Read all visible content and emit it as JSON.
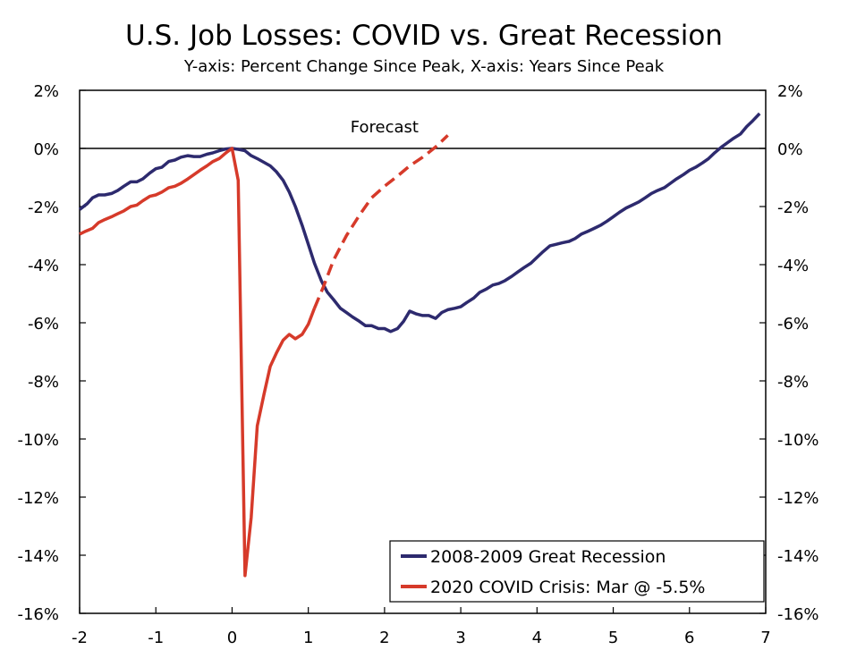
{
  "chart_data": {
    "type": "line",
    "title": "U.S. Job Losses: COVID vs. Great Recession",
    "subtitle": "Y-axis: Percent Change Since Peak, X-axis: Years Since Peak",
    "xlabel": "Years Since Peak",
    "ylabel": "Percent Change Since Peak",
    "xlim": [
      -2,
      7
    ],
    "ylim": [
      -16,
      2
    ],
    "x_ticks": [
      -2,
      -1,
      0,
      1,
      2,
      3,
      4,
      5,
      6,
      7
    ],
    "x_tick_labels": [
      "-2",
      "-1",
      "0",
      "1",
      "2",
      "3",
      "4",
      "5",
      "6",
      "7"
    ],
    "y_ticks": [
      2,
      0,
      -2,
      -4,
      -6,
      -8,
      -10,
      -12,
      -14,
      -16
    ],
    "y_tick_labels": [
      "2%",
      "0%",
      "-2%",
      "-4%",
      "-6%",
      "-8%",
      "-10%",
      "-12%",
      "-14%",
      "-16%"
    ],
    "annotation": "Forecast",
    "legend_position": "bottom-right",
    "series": [
      {
        "name": "2008-2009 Great Recession",
        "color": "#2d2a6e",
        "style": "solid",
        "points": [
          [
            -2.0,
            -2.1
          ],
          [
            -1.9,
            -1.9
          ],
          [
            -1.83,
            -1.7
          ],
          [
            -1.75,
            -1.6
          ],
          [
            -1.67,
            -1.6
          ],
          [
            -1.58,
            -1.55
          ],
          [
            -1.5,
            -1.45
          ],
          [
            -1.42,
            -1.3
          ],
          [
            -1.33,
            -1.15
          ],
          [
            -1.25,
            -1.15
          ],
          [
            -1.17,
            -1.05
          ],
          [
            -1.08,
            -0.85
          ],
          [
            -1.0,
            -0.7
          ],
          [
            -0.92,
            -0.65
          ],
          [
            -0.83,
            -0.45
          ],
          [
            -0.75,
            -0.4
          ],
          [
            -0.67,
            -0.3
          ],
          [
            -0.58,
            -0.25
          ],
          [
            -0.5,
            -0.28
          ],
          [
            -0.42,
            -0.28
          ],
          [
            -0.33,
            -0.2
          ],
          [
            -0.25,
            -0.15
          ],
          [
            -0.17,
            -0.08
          ],
          [
            -0.08,
            -0.02
          ],
          [
            0.0,
            0.0
          ],
          [
            0.08,
            -0.03
          ],
          [
            0.17,
            -0.08
          ],
          [
            0.25,
            -0.25
          ],
          [
            0.33,
            -0.35
          ],
          [
            0.42,
            -0.48
          ],
          [
            0.5,
            -0.6
          ],
          [
            0.58,
            -0.8
          ],
          [
            0.67,
            -1.1
          ],
          [
            0.75,
            -1.5
          ],
          [
            0.83,
            -2.0
          ],
          [
            0.92,
            -2.65
          ],
          [
            1.0,
            -3.3
          ],
          [
            1.08,
            -3.95
          ],
          [
            1.17,
            -4.55
          ],
          [
            1.25,
            -4.95
          ],
          [
            1.33,
            -5.2
          ],
          [
            1.42,
            -5.5
          ],
          [
            1.5,
            -5.65
          ],
          [
            1.58,
            -5.8
          ],
          [
            1.67,
            -5.95
          ],
          [
            1.75,
            -6.1
          ],
          [
            1.83,
            -6.1
          ],
          [
            1.92,
            -6.2
          ],
          [
            2.0,
            -6.2
          ],
          [
            2.08,
            -6.3
          ],
          [
            2.17,
            -6.2
          ],
          [
            2.25,
            -5.95
          ],
          [
            2.33,
            -5.6
          ],
          [
            2.42,
            -5.7
          ],
          [
            2.5,
            -5.75
          ],
          [
            2.58,
            -5.75
          ],
          [
            2.67,
            -5.85
          ],
          [
            2.75,
            -5.65
          ],
          [
            2.83,
            -5.55
          ],
          [
            2.92,
            -5.5
          ],
          [
            3.0,
            -5.45
          ],
          [
            3.08,
            -5.3
          ],
          [
            3.17,
            -5.15
          ],
          [
            3.25,
            -4.95
          ],
          [
            3.33,
            -4.85
          ],
          [
            3.42,
            -4.7
          ],
          [
            3.5,
            -4.65
          ],
          [
            3.58,
            -4.55
          ],
          [
            3.67,
            -4.4
          ],
          [
            3.75,
            -4.25
          ],
          [
            3.83,
            -4.1
          ],
          [
            3.92,
            -3.95
          ],
          [
            4.0,
            -3.75
          ],
          [
            4.08,
            -3.55
          ],
          [
            4.17,
            -3.35
          ],
          [
            4.25,
            -3.3
          ],
          [
            4.33,
            -3.25
          ],
          [
            4.42,
            -3.2
          ],
          [
            4.5,
            -3.1
          ],
          [
            4.58,
            -2.95
          ],
          [
            4.67,
            -2.85
          ],
          [
            4.75,
            -2.75
          ],
          [
            4.83,
            -2.65
          ],
          [
            4.92,
            -2.5
          ],
          [
            5.0,
            -2.35
          ],
          [
            5.08,
            -2.2
          ],
          [
            5.17,
            -2.05
          ],
          [
            5.25,
            -1.95
          ],
          [
            5.33,
            -1.85
          ],
          [
            5.42,
            -1.7
          ],
          [
            5.5,
            -1.55
          ],
          [
            5.58,
            -1.45
          ],
          [
            5.67,
            -1.35
          ],
          [
            5.75,
            -1.2
          ],
          [
            5.83,
            -1.05
          ],
          [
            5.92,
            -0.9
          ],
          [
            6.0,
            -0.75
          ],
          [
            6.08,
            -0.65
          ],
          [
            6.17,
            -0.5
          ],
          [
            6.25,
            -0.35
          ],
          [
            6.33,
            -0.15
          ],
          [
            6.42,
            0.05
          ],
          [
            6.5,
            0.2
          ],
          [
            6.58,
            0.35
          ],
          [
            6.67,
            0.5
          ],
          [
            6.75,
            0.75
          ],
          [
            6.83,
            0.95
          ],
          [
            6.92,
            1.2
          ]
        ]
      },
      {
        "name": "2020 COVID Crisis: Mar @ -5.5%",
        "color": "#d63a2a",
        "style": "solid",
        "points": [
          [
            -2.0,
            -2.95
          ],
          [
            -1.92,
            -2.85
          ],
          [
            -1.83,
            -2.75
          ],
          [
            -1.75,
            -2.55
          ],
          [
            -1.67,
            -2.45
          ],
          [
            -1.58,
            -2.35
          ],
          [
            -1.5,
            -2.25
          ],
          [
            -1.42,
            -2.15
          ],
          [
            -1.33,
            -2.0
          ],
          [
            -1.25,
            -1.95
          ],
          [
            -1.17,
            -1.8
          ],
          [
            -1.08,
            -1.65
          ],
          [
            -1.0,
            -1.6
          ],
          [
            -0.92,
            -1.5
          ],
          [
            -0.83,
            -1.35
          ],
          [
            -0.75,
            -1.3
          ],
          [
            -0.67,
            -1.2
          ],
          [
            -0.58,
            -1.05
          ],
          [
            -0.5,
            -0.9
          ],
          [
            -0.42,
            -0.75
          ],
          [
            -0.33,
            -0.6
          ],
          [
            -0.25,
            -0.45
          ],
          [
            -0.17,
            -0.35
          ],
          [
            -0.08,
            -0.15
          ],
          [
            0.0,
            0.0
          ],
          [
            0.08,
            -1.1
          ],
          [
            0.17,
            -14.7
          ],
          [
            0.25,
            -12.7
          ],
          [
            0.33,
            -9.55
          ],
          [
            0.42,
            -8.45
          ],
          [
            0.5,
            -7.5
          ],
          [
            0.58,
            -7.05
          ],
          [
            0.67,
            -6.6
          ],
          [
            0.75,
            -6.4
          ],
          [
            0.83,
            -6.55
          ],
          [
            0.92,
            -6.4
          ],
          [
            1.0,
            -6.05
          ],
          [
            1.08,
            -5.5
          ]
        ]
      },
      {
        "name": "Forecast",
        "color": "#d63a2a",
        "style": "dashed",
        "points": [
          [
            1.08,
            -5.5
          ],
          [
            1.2,
            -4.75
          ],
          [
            1.33,
            -3.85
          ],
          [
            1.5,
            -3.0
          ],
          [
            1.67,
            -2.3
          ],
          [
            1.83,
            -1.7
          ],
          [
            2.0,
            -1.3
          ],
          [
            2.17,
            -0.95
          ],
          [
            2.33,
            -0.6
          ],
          [
            2.5,
            -0.3
          ],
          [
            2.67,
            0.05
          ],
          [
            2.83,
            0.45
          ]
        ]
      }
    ]
  }
}
